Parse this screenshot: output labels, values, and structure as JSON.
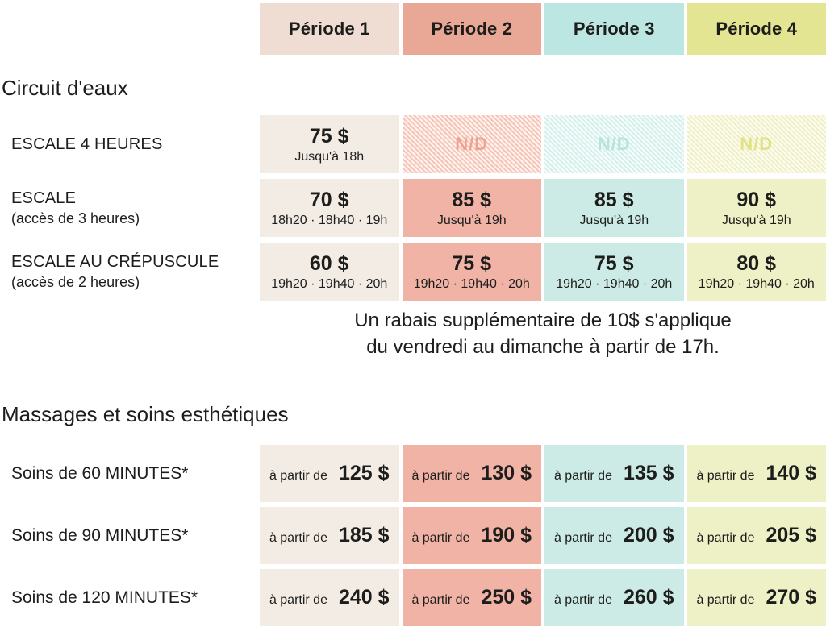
{
  "colors": {
    "period1_header": "#efddd3",
    "period2_header": "#e9a795",
    "period3_header": "#bce6e1",
    "period4_header": "#e3e592",
    "period1_cell": "#f3ece5",
    "period2_cell": "#f0b3a6",
    "period3_cell": "#cdebe6",
    "period4_cell": "#eef0c6",
    "text": "#1d1d1b"
  },
  "header": {
    "columns": [
      "Période 1",
      "Période 2",
      "Période 3",
      "Période 4"
    ]
  },
  "sections": [
    {
      "title": "Circuit d'eaux",
      "rows": [
        {
          "label": "ESCALE 4 HEURES",
          "sublabel": "",
          "cells": [
            {
              "price": "75 $",
              "schedule": "Jusqu'à 18h"
            },
            {
              "value": "N/D"
            },
            {
              "value": "N/D"
            },
            {
              "value": "N/D"
            }
          ]
        },
        {
          "label": "ESCALE",
          "sublabel": "(accès de 3 heures)",
          "cells": [
            {
              "price": "70 $",
              "schedule": "18h20 · 18h40 · 19h"
            },
            {
              "price": "85 $",
              "schedule": "Jusqu'à 19h"
            },
            {
              "price": "85 $",
              "schedule": "Jusqu'à 19h"
            },
            {
              "price": "90 $",
              "schedule": "Jusqu'à 19h"
            }
          ]
        },
        {
          "label": "ESCALE AU CRÉPUSCULE",
          "sublabel": "(accès de 2 heures)",
          "cells": [
            {
              "price": "60 $",
              "schedule": "19h20 · 19h40 · 20h"
            },
            {
              "price": "75 $",
              "schedule": "19h20 · 19h40 · 20h"
            },
            {
              "price": "75 $",
              "schedule": "19h20 · 19h40 · 20h"
            },
            {
              "price": "80 $",
              "schedule": "19h20 · 19h40 · 20h"
            }
          ]
        }
      ],
      "note_line1": "Un rabais supplémentaire de 10$ s'applique",
      "note_line2": "du vendredi au dimanche à partir de 17h."
    },
    {
      "title": "Massages et soins esthétiques",
      "prefix": "à partir de",
      "rows": [
        {
          "label": "Soins de 60 MINUTES*",
          "prices": [
            "125 $",
            "130 $",
            "135 $",
            "140 $"
          ]
        },
        {
          "label": "Soins de 90 MINUTES*",
          "prices": [
            "185 $",
            "190 $",
            "200 $",
            "205 $"
          ]
        },
        {
          "label": "Soins de 120 MINUTES*",
          "prices": [
            "240 $",
            "250 $",
            "260 $",
            "270 $"
          ]
        }
      ]
    }
  ]
}
